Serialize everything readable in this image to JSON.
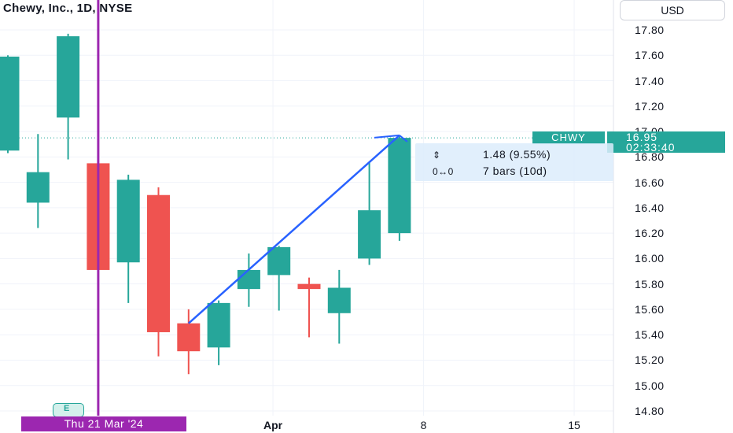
{
  "header": {
    "title": "Chewy, Inc., 1D, NYSE",
    "currency_button": "USD"
  },
  "chart_data": {
    "type": "candlestick",
    "symbol": "CHWY",
    "interval": "1D",
    "exchange": "NYSE",
    "ylim": [
      14.76,
      17.98
    ],
    "y_ticks": [
      "17.80",
      "17.60",
      "17.40",
      "17.20",
      "17.00",
      "16.80",
      "16.60",
      "16.40",
      "16.20",
      "16.00",
      "15.80",
      "15.60",
      "15.40",
      "15.20",
      "15.00",
      "14.80"
    ],
    "x_ticks": [
      {
        "label": "Apr",
        "bar_index": 8.8,
        "bold": true
      },
      {
        "label": "8",
        "bar_index": 13.8,
        "bold": false
      },
      {
        "label": "15",
        "bar_index": 18.8,
        "bold": false
      }
    ],
    "candles": [
      {
        "open": 16.85,
        "high": 17.6,
        "low": 16.83,
        "close": 17.59
      },
      {
        "open": 16.44,
        "high": 16.98,
        "low": 16.24,
        "close": 16.68
      },
      {
        "open": 17.11,
        "high": 17.77,
        "low": 16.78,
        "close": 17.75
      },
      {
        "open": 16.75,
        "high": 16.76,
        "low": 15.91,
        "close": 15.91
      },
      {
        "open": 15.97,
        "high": 16.66,
        "low": 15.65,
        "close": 16.62
      },
      {
        "open": 16.5,
        "high": 16.56,
        "low": 15.23,
        "close": 15.42
      },
      {
        "open": 15.49,
        "high": 15.6,
        "low": 15.09,
        "close": 15.27
      },
      {
        "open": 15.3,
        "high": 15.67,
        "low": 15.16,
        "close": 15.65
      },
      {
        "open": 15.76,
        "high": 16.04,
        "low": 15.62,
        "close": 15.91
      },
      {
        "open": 15.87,
        "high": 16.1,
        "low": 15.59,
        "close": 16.09
      },
      {
        "open": 15.8,
        "high": 15.85,
        "low": 15.38,
        "close": 15.76
      },
      {
        "open": 15.57,
        "high": 15.91,
        "low": 15.33,
        "close": 15.77
      },
      {
        "open": 16.0,
        "high": 16.76,
        "low": 15.95,
        "close": 16.38
      },
      {
        "open": 16.2,
        "high": 16.97,
        "low": 16.14,
        "close": 16.95
      }
    ],
    "last_price": "16.95",
    "last_price_value": 16.95,
    "countdown": "02:33:40",
    "up_color": "#26a69a",
    "down_color": "#ef5350",
    "marker_color": "#9c27b0",
    "drawing_color": "#2962ff",
    "vertical_marker_bar_index": 3,
    "trend_line": {
      "from": {
        "bar_index": 6,
        "price": 15.49
      },
      "to": {
        "bar_index": 13,
        "price": 16.97
      }
    },
    "measure": {
      "price_change": "1.48 (9.55%)",
      "bars": "7 bars (10d)"
    },
    "selected_date": "Thu 21 Mar '24",
    "earnings_badge": "E"
  }
}
